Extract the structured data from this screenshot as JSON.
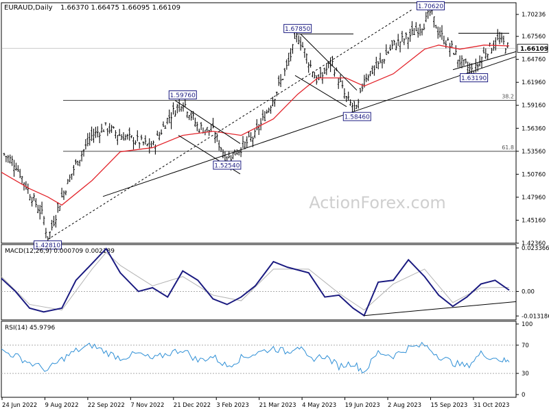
{
  "colors": {
    "background": "#ffffff",
    "price_bars": "#0a0a0a",
    "sma": "#e3242b",
    "trendline": "#000000",
    "channel": "#111111",
    "retracement": "#444444",
    "macd_line": "#1a1a80",
    "macd_signal": "#b3b3b3",
    "rsi_line": "#2e8fd6",
    "watermark": "#cfcfcf",
    "label_border": "#1a1a80",
    "label_fill": "#ffffff",
    "label_text": "#1a1a80"
  },
  "header": {
    "symbol": "EURAUD,Daily",
    "ohlc": "1.66370 1.66475 1.66095 1.66109"
  },
  "watermark": "ActionForex.com",
  "chart_data": [
    {
      "type": "line",
      "panel": "price",
      "title": "EURAUD,Daily",
      "ylim": [
        1.4236,
        1.7166
      ],
      "y_ticks": [
        "1.70236",
        "1.67560",
        "1.64760",
        "1.61960",
        "1.59160",
        "1.56360",
        "1.53560",
        "1.50760",
        "1.47960",
        "1.45160",
        "1.42360"
      ],
      "current_price": "1.66109",
      "series": [
        {
          "key": "close",
          "x": [
            "2022-06-24",
            "2022-07-08",
            "2022-07-22",
            "2022-08-05",
            "2022-08-09",
            "2022-08-23",
            "2022-09-06",
            "2022-09-22",
            "2022-10-06",
            "2022-10-20",
            "2022-11-07",
            "2022-11-21",
            "2022-12-06",
            "2022-12-21",
            "2023-01-05",
            "2023-01-20",
            "2023-02-03",
            "2023-02-17",
            "2023-03-03",
            "2023-03-21",
            "2023-04-04",
            "2023-04-14",
            "2023-04-25",
            "2023-05-04",
            "2023-05-18",
            "2023-06-01",
            "2023-06-12",
            "2023-06-19",
            "2023-07-03",
            "2023-07-18",
            "2023-08-02",
            "2023-08-18",
            "2023-08-24",
            "2023-09-01",
            "2023-09-15",
            "2023-09-22",
            "2023-10-06",
            "2023-10-16",
            "2023-10-31",
            "2023-11-10"
          ],
          "values": [
            1.535,
            1.52,
            1.485,
            1.455,
            1.4281,
            1.48,
            1.52,
            1.555,
            1.565,
            1.555,
            1.548,
            1.54,
            1.575,
            1.5976,
            1.565,
            1.56,
            1.5254,
            1.54,
            1.555,
            1.6,
            1.64,
            1.6785,
            1.645,
            1.62,
            1.645,
            1.6,
            1.5846,
            1.625,
            1.64,
            1.665,
            1.675,
            1.692,
            1.7062,
            1.68,
            1.66,
            1.645,
            1.6319,
            1.655,
            1.672,
            1.66109
          ]
        },
        {
          "key": "sma",
          "x": [
            "2022-06-24",
            "2022-07-22",
            "2022-08-09",
            "2022-08-23",
            "2022-09-22",
            "2022-10-20",
            "2022-11-21",
            "2022-12-21",
            "2023-01-20",
            "2023-02-17",
            "2023-03-21",
            "2023-04-14",
            "2023-05-04",
            "2023-06-01",
            "2023-06-19",
            "2023-07-18",
            "2023-08-18",
            "2023-09-01",
            "2023-09-22",
            "2023-10-16",
            "2023-11-10"
          ],
          "values": [
            1.51,
            1.49,
            1.48,
            1.47,
            1.5,
            1.535,
            1.54,
            1.555,
            1.56,
            1.555,
            1.575,
            1.605,
            1.625,
            1.625,
            1.615,
            1.63,
            1.66,
            1.665,
            1.66,
            1.665,
            1.664
          ]
        }
      ],
      "annotations": [
        {
          "label": "1.42810",
          "x": "2022-08-09",
          "price": 1.4281
        },
        {
          "label": "1.59760",
          "x": "2022-12-21",
          "price": 1.5976
        },
        {
          "label": "1.52540",
          "x": "2023-02-03",
          "price": 1.5254
        },
        {
          "label": "1.67850",
          "x": "2023-04-14",
          "price": 1.6785
        },
        {
          "label": "1.58460",
          "x": "2023-06-12",
          "price": 1.5846
        },
        {
          "label": "1.70620",
          "x": "2023-08-24",
          "price": 1.7062
        },
        {
          "label": "1.63190",
          "x": "2023-10-06",
          "price": 1.6319
        }
      ],
      "levels": [
        {
          "label": "38.2",
          "price": 1.5976
        },
        {
          "label": "61.8",
          "price": 1.5356
        }
      ]
    },
    {
      "type": "line",
      "panel": "macd",
      "title": "MACD(12,26,9) 0.000709 0.002189",
      "ylim": [
        -0.0153,
        0.0252
      ],
      "y_ticks": [
        "0.023366",
        "0.00",
        "-0.013186"
      ],
      "series": [
        {
          "key": "macd",
          "x": [
            "2022-06-24",
            "2022-07-08",
            "2022-07-22",
            "2022-08-05",
            "2022-08-23",
            "2022-09-06",
            "2022-09-22",
            "2022-10-06",
            "2022-10-20",
            "2022-11-07",
            "2022-11-21",
            "2022-12-06",
            "2022-12-21",
            "2023-01-05",
            "2023-01-20",
            "2023-02-03",
            "2023-02-17",
            "2023-03-03",
            "2023-03-21",
            "2023-04-04",
            "2023-04-25",
            "2023-05-11",
            "2023-05-25",
            "2023-06-08",
            "2023-06-19",
            "2023-07-03",
            "2023-07-18",
            "2023-08-02",
            "2023-08-18",
            "2023-09-01",
            "2023-09-15",
            "2023-09-29",
            "2023-10-13",
            "2023-10-27",
            "2023-11-10"
          ],
          "values": [
            0.007,
            0.0,
            -0.009,
            -0.011,
            -0.009,
            0.006,
            0.015,
            0.023,
            0.01,
            0.0,
            0.002,
            -0.003,
            0.011,
            0.006,
            -0.004,
            -0.007,
            -0.003,
            0.003,
            0.016,
            0.013,
            0.01,
            -0.003,
            -0.002,
            -0.009,
            -0.013,
            0.005,
            0.006,
            0.017,
            0.008,
            -0.002,
            -0.008,
            -0.003,
            0.004,
            0.006,
            0.0007
          ]
        },
        {
          "key": "signal",
          "x": [
            "2022-06-24",
            "2022-07-22",
            "2022-08-23",
            "2022-09-22",
            "2022-10-06",
            "2022-10-20",
            "2022-11-21",
            "2022-12-21",
            "2023-01-20",
            "2023-02-17",
            "2023-03-21",
            "2023-04-25",
            "2023-05-25",
            "2023-06-19",
            "2023-07-18",
            "2023-08-18",
            "2023-09-15",
            "2023-10-13",
            "2023-11-10"
          ],
          "values": [
            0.008,
            -0.007,
            -0.01,
            0.012,
            0.021,
            0.014,
            0.003,
            0.008,
            -0.002,
            -0.005,
            0.012,
            0.012,
            -0.001,
            -0.01,
            0.004,
            0.012,
            -0.006,
            0.002,
            0.0022
          ]
        }
      ]
    },
    {
      "type": "line",
      "panel": "rsi",
      "title": "RSI(14) 45.9796",
      "ylim": [
        0,
        100
      ],
      "y_ticks": [
        "100",
        "70",
        "30",
        "0"
      ],
      "levels": [
        70,
        30
      ],
      "series": [
        {
          "key": "rsi",
          "x": [
            "2022-06-24",
            "2022-07-08",
            "2022-07-22",
            "2022-08-09",
            "2022-08-23",
            "2022-09-06",
            "2022-09-22",
            "2022-10-06",
            "2022-10-20",
            "2022-11-07",
            "2022-11-21",
            "2022-12-06",
            "2022-12-21",
            "2023-01-05",
            "2023-01-20",
            "2023-02-03",
            "2023-02-17",
            "2023-03-03",
            "2023-03-21",
            "2023-04-04",
            "2023-04-14",
            "2023-04-25",
            "2023-05-11",
            "2023-05-25",
            "2023-06-08",
            "2023-06-19",
            "2023-07-03",
            "2023-07-18",
            "2023-08-02",
            "2023-08-18",
            "2023-09-01",
            "2023-09-15",
            "2023-09-29",
            "2023-10-13",
            "2023-10-31",
            "2023-11-10"
          ],
          "values": [
            62,
            55,
            45,
            35,
            50,
            62,
            70,
            60,
            52,
            58,
            50,
            58,
            64,
            48,
            54,
            40,
            52,
            58,
            66,
            60,
            70,
            50,
            55,
            40,
            45,
            32,
            60,
            55,
            66,
            70,
            55,
            45,
            40,
            58,
            50,
            46
          ]
        }
      ]
    }
  ],
  "x_axis": {
    "tick_labels": [
      "24 Jun 2022",
      "9 Aug 2022",
      "22 Sep 2022",
      "7 Nov 2022",
      "21 Dec 2022",
      "3 Feb 2023",
      "21 Mar 2023",
      "4 May 2023",
      "19 Jun 2023",
      "2 Aug 2023",
      "15 Sep 2023",
      "31 Oct 2023"
    ]
  }
}
